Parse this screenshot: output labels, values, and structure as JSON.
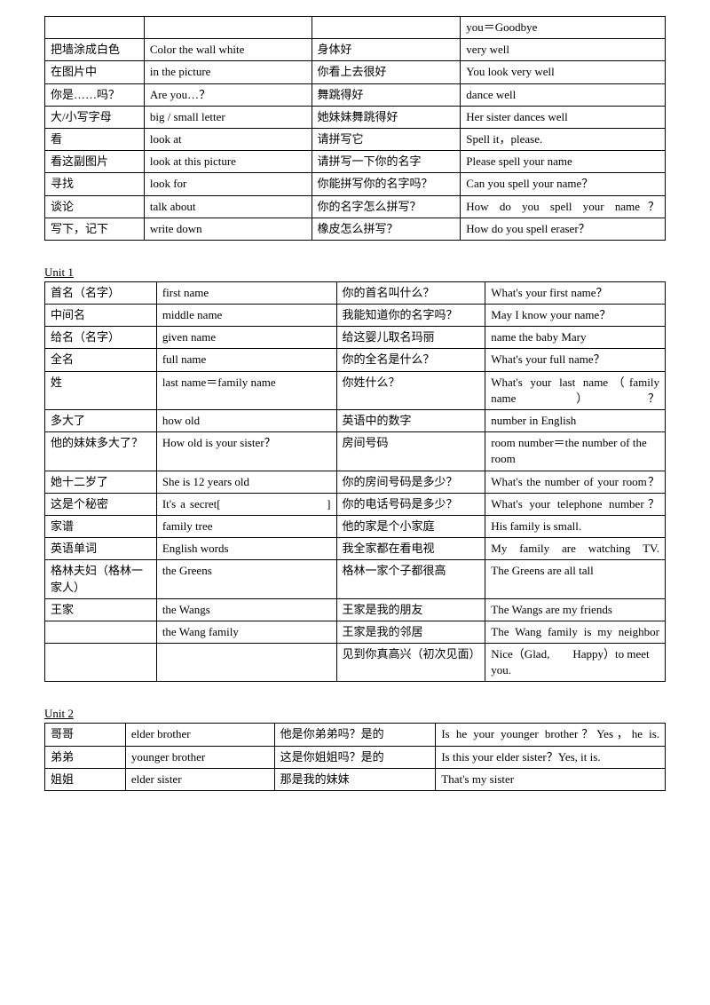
{
  "t1": {
    "rows": [
      [
        "",
        "",
        "",
        "you＝Goodbye"
      ],
      [
        "把墙涂成白色",
        "Color the wall white",
        "身体好",
        "very well"
      ],
      [
        "在图片中",
        "in the picture",
        "你看上去很好",
        "You look very well"
      ],
      [
        "你是……吗？",
        "Are you…？",
        "舞跳得好",
        "dance well"
      ],
      [
        "大/小写字母",
        "big / small letter",
        "她妹妹舞跳得好",
        "Her sister dances well"
      ],
      [
        "看",
        "look at",
        "请拼写它",
        "Spell it，please."
      ],
      [
        "看这副图片",
        "look at this picture",
        "请拼写一下你的名字",
        "Please spell your name"
      ],
      [
        "寻找",
        "look for",
        "你能拼写你的名字吗？",
        "Can you spell your name？"
      ],
      [
        "谈论",
        "talk about",
        "你的名字怎么拼写？",
        "How do you spell your name？"
      ],
      [
        "写下，记下",
        "write down",
        "橡皮怎么拼写？",
        "How do you spell eraser？"
      ]
    ]
  },
  "u1": {
    "title": "Unit 1",
    "rows": [
      [
        "首名（名字）",
        "first name",
        "你的首名叫什么？",
        "What's your first name？"
      ],
      [
        "中间名",
        "middle name",
        "我能知道你的名字吗？",
        "May I know your name？"
      ],
      [
        "给名（名字）",
        "given name",
        "给这婴儿取名玛丽",
        "name the baby Mary"
      ],
      [
        "全名",
        "full name",
        "你的全名是什么？",
        "What's your full name？"
      ],
      [
        "姓",
        "last name＝family name",
        "你姓什么？",
        "What's your last name（family name）？"
      ],
      [
        "多大了",
        "how old",
        "英语中的数字",
        "number in English"
      ],
      [
        "他的妹妹多大了？",
        "How old is your sister？",
        "房间号码",
        "room number＝the number of the room"
      ],
      [
        "她十二岁了",
        "She is 12 years old",
        "你的房间号码是多少？",
        "What's the number of your room？"
      ],
      [
        "这是个秘密",
        "It's a secret[　　　　　　　　]",
        "你的电话号码是多少？",
        "What's your telephone number？"
      ],
      [
        "家谱",
        "family tree",
        "他的家是个小家庭",
        "His family is small."
      ],
      [
        "英语单词",
        "English words",
        "我全家都在看电视",
        "My family are watching TV."
      ],
      [
        "格林夫妇（格林一家人）",
        "the Greens",
        "格林一家个子都很高",
        "The Greens are all tall"
      ],
      [
        "王家",
        "the Wangs",
        "王家是我的朋友",
        "The Wangs are my friends"
      ],
      [
        "",
        "the Wang family",
        "王家是我的邻居",
        "The Wang family is my neighbor"
      ],
      [
        "",
        "",
        "见到你真高兴（初次见面）",
        "Nice（Glad,　　Happy）to meet you."
      ]
    ]
  },
  "u2": {
    "title": "Unit 2",
    "rows": [
      [
        "哥哥",
        "elder brother",
        "他是你弟弟吗？是的",
        "Is he your younger brother？Yes，he is."
      ],
      [
        "弟弟",
        "younger brother",
        "这是你姐姐吗？是的",
        "Is this your elder sister？Yes, it is."
      ],
      [
        "姐姐",
        "elder sister",
        "那是我的妹妹",
        "That's my sister"
      ]
    ]
  }
}
